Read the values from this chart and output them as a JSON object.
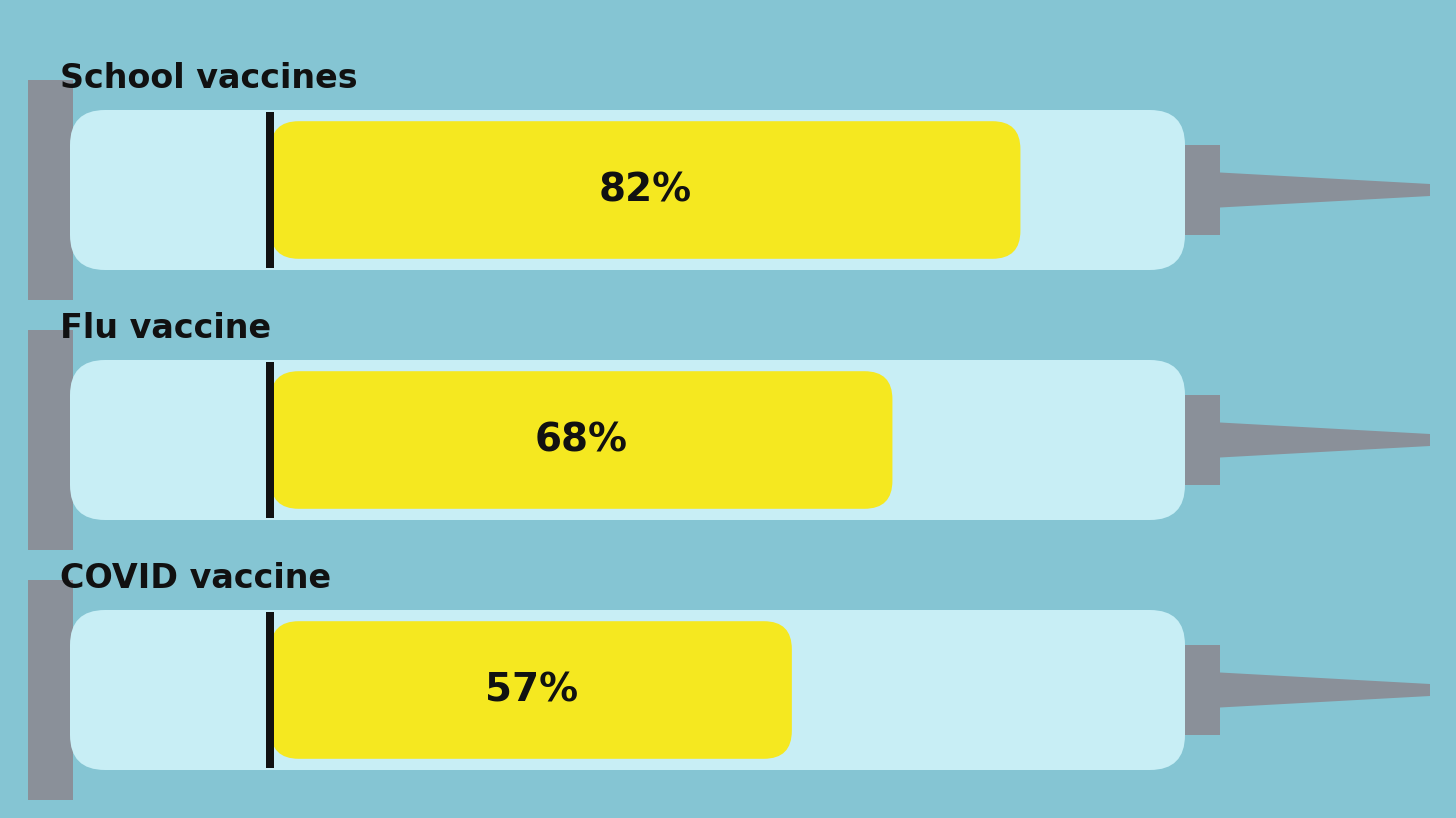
{
  "background_color": "#85c5d3",
  "syringes": [
    {
      "label": "School vaccines",
      "value": 82,
      "pct_text": "82%"
    },
    {
      "label": "Flu vaccine",
      "value": 68,
      "pct_text": "68%"
    },
    {
      "label": "COVID vaccine",
      "value": 57,
      "pct_text": "57%"
    }
  ],
  "syringe_body_color": "#c8eef5",
  "syringe_fill_color": "#f5e820",
  "plunger_color": "#8a9099",
  "needle_color": "#8a9099",
  "marker_color": "#111111",
  "label_color": "#111111",
  "pct_color": "#111111",
  "label_fontsize": 24,
  "pct_fontsize": 28,
  "fig_width": 14.56,
  "fig_height": 8.18,
  "dpi": 100
}
